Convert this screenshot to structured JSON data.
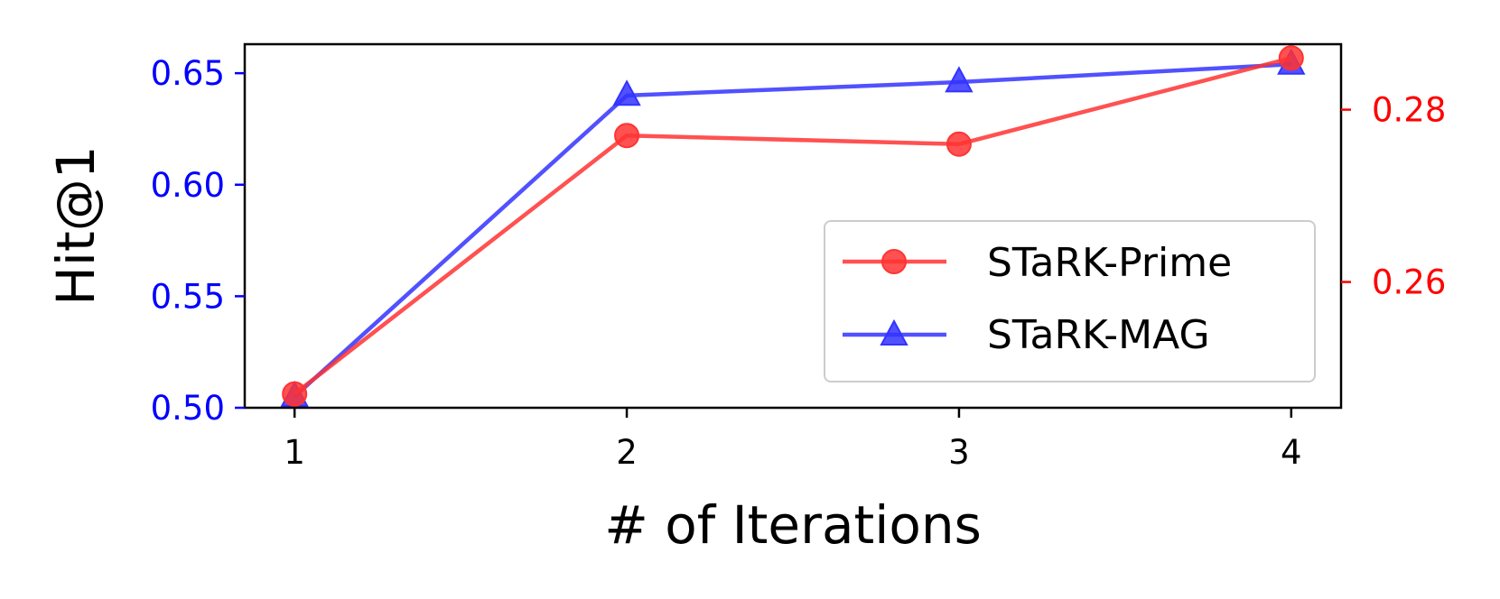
{
  "chart_data": {
    "type": "line",
    "xlabel": "# of Iterations",
    "ylabel": "Hit@1",
    "categories": [
      "1",
      "2",
      "3",
      "4"
    ],
    "x": [
      1,
      2,
      3,
      4
    ],
    "xlim": [
      0.85,
      4.15
    ],
    "x_ticks": [
      "1",
      "2",
      "3",
      "4"
    ],
    "y_left": {
      "ylim": [
        0.5,
        0.663
      ],
      "ticks": [
        0.5,
        0.55,
        0.6,
        0.65
      ],
      "tick_labels": [
        "0.50",
        "0.55",
        "0.60",
        "0.65"
      ],
      "color": "#0000ff"
    },
    "y_right": {
      "ylim": [
        0.2454,
        0.2876
      ],
      "ticks": [
        0.26,
        0.28
      ],
      "tick_labels": [
        "0.26",
        "0.28"
      ],
      "color": "#ff0000"
    },
    "series": [
      {
        "name": "STaRK-Prime",
        "axis": "right",
        "color": "#ff3333",
        "marker": "circle",
        "values": [
          0.247,
          0.277,
          0.276,
          0.286
        ]
      },
      {
        "name": "STaRK-MAG",
        "axis": "left",
        "color": "#3333ff",
        "marker": "triangle",
        "values": [
          0.505,
          0.64,
          0.646,
          0.654
        ]
      }
    ],
    "grid": false,
    "legend_position": "center-right"
  }
}
